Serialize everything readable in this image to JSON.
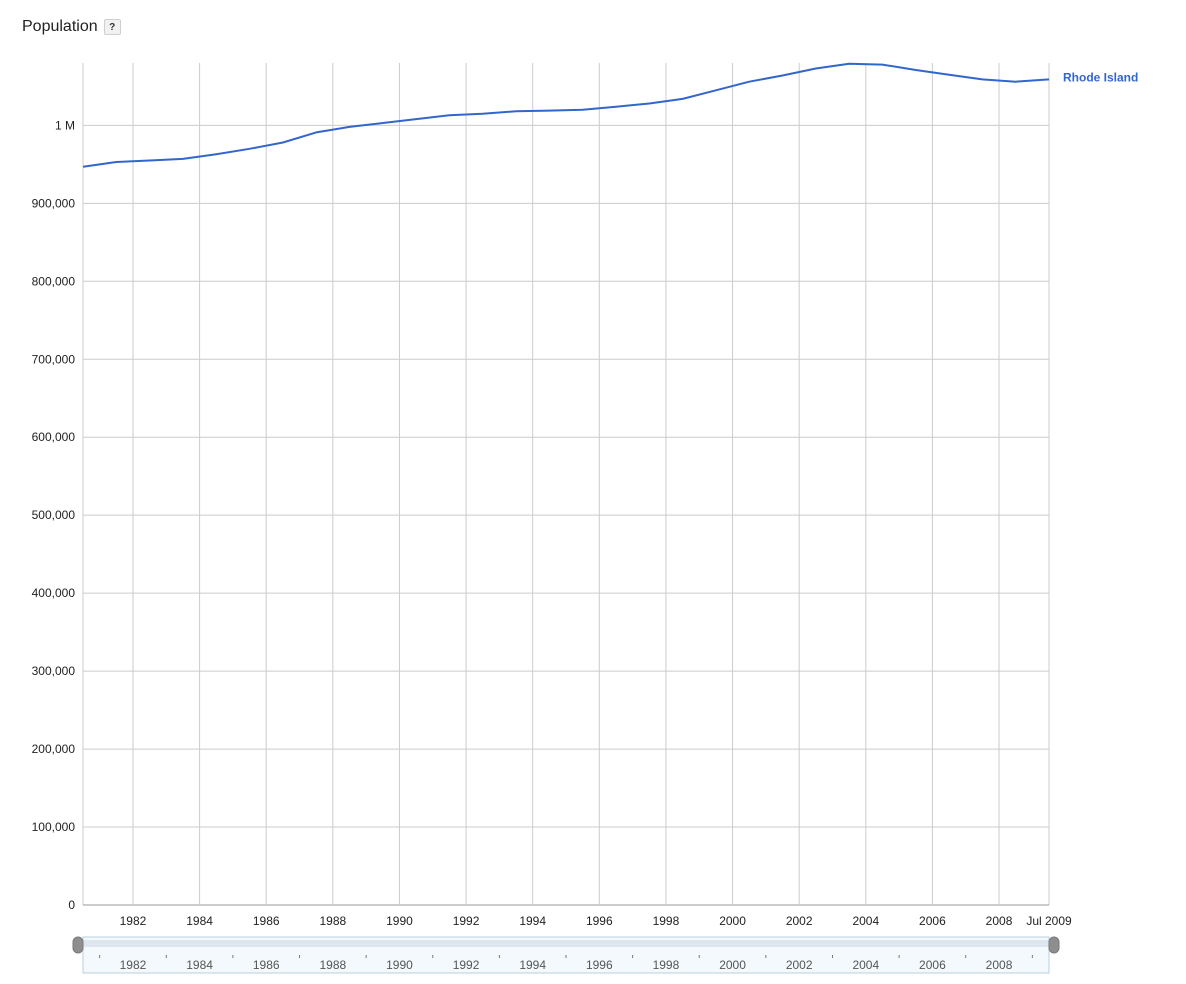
{
  "title": "Population",
  "help_label": "?",
  "chart_data": {
    "type": "line",
    "ylim": [
      0,
      1080000
    ],
    "y_ticks": [
      0,
      100000,
      200000,
      300000,
      400000,
      500000,
      600000,
      700000,
      800000,
      900000,
      1000000
    ],
    "y_tick_labels": [
      "0",
      "100,000",
      "200,000",
      "300,000",
      "400,000",
      "500,000",
      "600,000",
      "700,000",
      "800,000",
      "900,000",
      "1 M"
    ],
    "xlim": [
      1980.5,
      2009.5
    ],
    "x_ticks": [
      1982,
      1984,
      1986,
      1988,
      1990,
      1992,
      1994,
      1996,
      1998,
      2000,
      2002,
      2004,
      2006,
      2008
    ],
    "x_tick_labels": [
      "1982",
      "1984",
      "1986",
      "1988",
      "1990",
      "1992",
      "1994",
      "1996",
      "1998",
      "2000",
      "2002",
      "2004",
      "2006",
      "2008"
    ],
    "x_end_label": "Jul 2009",
    "grid": true,
    "series": [
      {
        "name": "Rhode Island",
        "color": "#3366cc",
        "x": [
          1980.5,
          1981.5,
          1982.5,
          1983.5,
          1984.5,
          1985.5,
          1986.5,
          1987.5,
          1988.5,
          1989.5,
          1990.5,
          1991.5,
          1992.5,
          1993.5,
          1994.5,
          1995.5,
          1996.5,
          1997.5,
          1998.5,
          1999.5,
          2000.5,
          2001.5,
          2002.5,
          2003.5,
          2004.5,
          2005.5,
          2006.5,
          2007.5,
          2008.5,
          2009.5
        ],
        "values": [
          947000,
          953000,
          955000,
          957000,
          963000,
          970000,
          978000,
          991000,
          998000,
          1003000,
          1008000,
          1013000,
          1015000,
          1018000,
          1019000,
          1020000,
          1024000,
          1028000,
          1034000,
          1045000,
          1056000,
          1064000,
          1073000,
          1079000,
          1078000,
          1071000,
          1065000,
          1059000,
          1056000,
          1059000
        ]
      }
    ]
  },
  "range_slider": {
    "tick_labels": [
      "1982",
      "1984",
      "1986",
      "1988",
      "1990",
      "1992",
      "1994",
      "1996",
      "1998",
      "2000",
      "2002",
      "2004",
      "2006",
      "2008"
    ]
  }
}
